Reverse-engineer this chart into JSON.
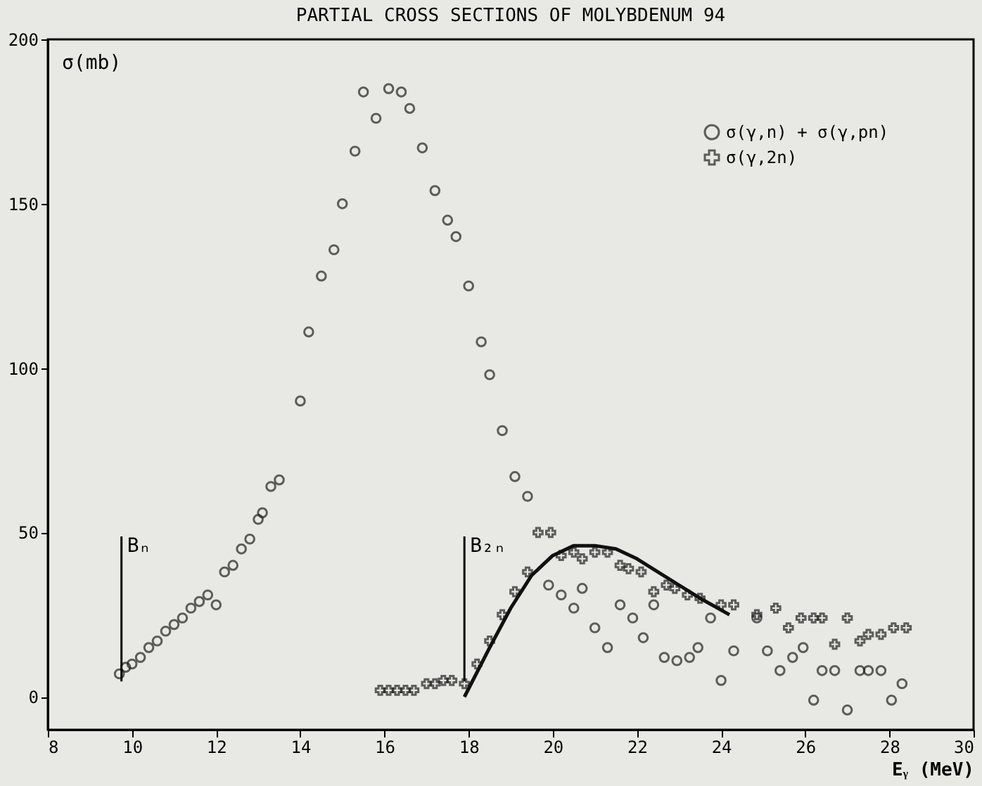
{
  "chart_data": {
    "type": "scatter",
    "title": "PARTIAL CROSS SECTIONS OF MOLYBDENUM 94",
    "xlabel": "Eᵧ (MeV)",
    "ylabel": "σ(mb)",
    "xlim": [
      8,
      30
    ],
    "xticks": [
      8,
      10,
      12,
      14,
      16,
      18,
      20,
      22,
      24,
      26,
      28,
      30
    ],
    "ylim": [
      -10,
      200
    ],
    "yticks": [
      0,
      50,
      100,
      150,
      200
    ],
    "grid": false,
    "legend": "top right",
    "ref_lines": [
      {
        "axis": "x",
        "value": 9.75,
        "label": "Bₙ"
      },
      {
        "axis": "x",
        "value": 17.9,
        "label": "B₂ₙ"
      }
    ],
    "series": [
      {
        "name": "σ(γ,n) + σ(γ,pn)",
        "color": "#222222",
        "marker": "circle",
        "x": [
          9.7,
          9.85,
          10.0,
          10.2,
          10.4,
          10.6,
          10.8,
          11.0,
          11.2,
          11.4,
          11.6,
          11.8,
          12.0,
          12.2,
          12.4,
          12.6,
          12.8,
          13.0,
          13.1,
          13.3,
          13.5,
          14.0,
          14.2,
          14.5,
          14.8,
          15.0,
          15.3,
          15.5,
          15.8,
          16.1,
          16.4,
          16.6,
          16.9,
          17.2,
          17.5,
          17.7,
          18.0,
          18.3,
          18.5,
          18.8,
          19.1,
          19.4,
          19.9,
          20.2,
          20.5,
          20.7,
          21.0,
          21.3,
          21.6,
          21.9,
          22.15,
          22.4,
          22.65,
          22.95,
          23.25,
          23.45,
          23.75,
          24.0,
          24.3,
          24.85,
          25.1,
          25.4,
          25.7,
          25.95,
          26.2,
          26.4,
          26.7,
          27.0,
          27.3,
          27.5,
          27.8,
          28.05,
          28.3
        ],
        "values": [
          7,
          9,
          10,
          12,
          15,
          17,
          20,
          22,
          24,
          27,
          29,
          31,
          28,
          38,
          40,
          45,
          48,
          54,
          56,
          64,
          66,
          90,
          111,
          128,
          136,
          150,
          166,
          184,
          176,
          185,
          184,
          179,
          167,
          154,
          145,
          140,
          125,
          108,
          98,
          81,
          67,
          61,
          34,
          31,
          27,
          33,
          21,
          15,
          28,
          24,
          18,
          28,
          12,
          11,
          12,
          15,
          24,
          5,
          14,
          24,
          14,
          8,
          12,
          15,
          -1,
          8,
          8,
          -4,
          8,
          8,
          8,
          -1,
          4
        ]
      },
      {
        "name": "σ(γ,2n)",
        "color": "#222222",
        "marker": "cross",
        "x": [
          15.9,
          16.1,
          16.3,
          16.5,
          16.7,
          17.0,
          17.2,
          17.4,
          17.6,
          17.9,
          18.2,
          18.5,
          18.8,
          19.1,
          19.4,
          19.65,
          19.95,
          20.2,
          20.5,
          20.7,
          21.0,
          21.3,
          21.6,
          21.8,
          22.1,
          22.4,
          22.7,
          22.9,
          23.2,
          23.5,
          24.0,
          24.3,
          24.85,
          25.3,
          25.6,
          25.9,
          26.2,
          26.4,
          26.7,
          27.0,
          27.3,
          27.5,
          27.8,
          28.1,
          28.4
        ],
        "values": [
          2,
          2,
          2,
          2,
          2,
          4,
          4,
          5,
          5,
          4,
          10,
          17,
          25,
          32,
          38,
          50,
          50,
          43,
          44,
          42,
          44,
          44,
          40,
          39,
          38,
          32,
          34,
          33,
          31,
          30,
          28,
          28,
          25,
          27,
          21,
          24,
          24,
          24,
          16,
          24,
          17,
          19,
          19,
          21,
          21
        ]
      },
      {
        "type": "line",
        "color": "#111111",
        "x": [
          17.9,
          18.5,
          19.0,
          19.5,
          20.0,
          20.5,
          21.0,
          21.5,
          22.0,
          22.5,
          23.0,
          23.5,
          24.2
        ],
        "values": [
          0,
          15,
          27,
          37,
          43,
          46,
          46,
          45,
          42,
          38,
          34,
          30,
          25
        ]
      }
    ]
  }
}
